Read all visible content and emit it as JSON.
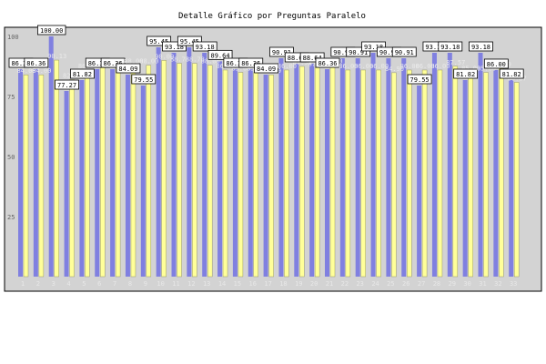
{
  "chart_data": {
    "type": "bar",
    "title": "Detalle Gráfico por Preguntas Paralelo",
    "xlabel": "",
    "ylabel": "",
    "ylim": [
      0,
      100
    ],
    "y_ticks": [
      "25",
      "50",
      "75",
      "100"
    ],
    "grid": false,
    "categories": [
      "1",
      "2",
      "3",
      "4",
      "5",
      "6",
      "7",
      "8",
      "9",
      "10",
      "11",
      "12",
      "13",
      "14",
      "15",
      "16",
      "17",
      "18",
      "19",
      "20",
      "21",
      "22",
      "23",
      "24",
      "25",
      "26",
      "27",
      "28",
      "29",
      "30",
      "31",
      "32",
      "33"
    ],
    "series": [
      {
        "name": "",
        "color": "#8080e0",
        "values": [
          86.36,
          86.36,
          100.0,
          77.27,
          81.82,
          86.36,
          86.36,
          84.09,
          79.55,
          95.45,
          93.18,
          95.45,
          93.18,
          89.64,
          86.36,
          86.36,
          84.09,
          90.91,
          88.64,
          88.64,
          86.36,
          90.91,
          90.91,
          93.18,
          90.91,
          90.91,
          79.55,
          93.18,
          93.18,
          81.82,
          93.18,
          86.0,
          81.82
        ]
      },
      {
        "name": "",
        "color": "#ffff99",
        "values": [
          84.0,
          84.0,
          90.13,
          82.0,
          86.0,
          87.0,
          87.0,
          88.0,
          88.0,
          90.0,
          88.78,
          88.78,
          88.0,
          86.0,
          85.0,
          85.0,
          84.0,
          86.0,
          87.51,
          87.0,
          88.0,
          86.0,
          86.0,
          86.0,
          84.9,
          86.0,
          86.0,
          86.0,
          87.57,
          85.0,
          85.0,
          86.79,
          80.87
        ]
      }
    ],
    "data_labels": [
      "86.36",
      "86.36",
      "100.00",
      "77.27",
      "81.82",
      "86.36",
      "86.36",
      "84.09",
      "79.55",
      "95.45",
      "93.18",
      "95.45",
      "93.18",
      "89.64",
      "86.36",
      "86.36",
      "84.09",
      "90.91",
      "88.64",
      "88.64",
      "86.36",
      "90.91",
      "90.91",
      "93.18",
      "90.91",
      "90.91",
      "79.55",
      "93.18",
      "93.18",
      "81.82",
      "93.18",
      "86.00",
      "81.82"
    ],
    "avg_labels": [
      "84.00",
      "84.00",
      "90.13",
      "82.00",
      "86.00",
      "87.00",
      "87.00",
      "88.00",
      "88.00",
      "90.00",
      "88.78",
      "88.78",
      "88.00",
      "86.00",
      "85.00",
      "85.00",
      "84.00",
      "86.00",
      "87.51",
      "87.00",
      "88.00",
      "86.00",
      "86.00",
      "86.00",
      "84.90",
      "86.00",
      "86.00",
      "86.00",
      "87.57",
      "85.00",
      "85.00",
      "86.79",
      "80.87"
    ],
    "colors": {
      "background": "#d3d3d3",
      "frame": "#000000",
      "axis_text": "#666666",
      "series_a": "#8080e0",
      "series_b": "#ffff99"
    }
  }
}
